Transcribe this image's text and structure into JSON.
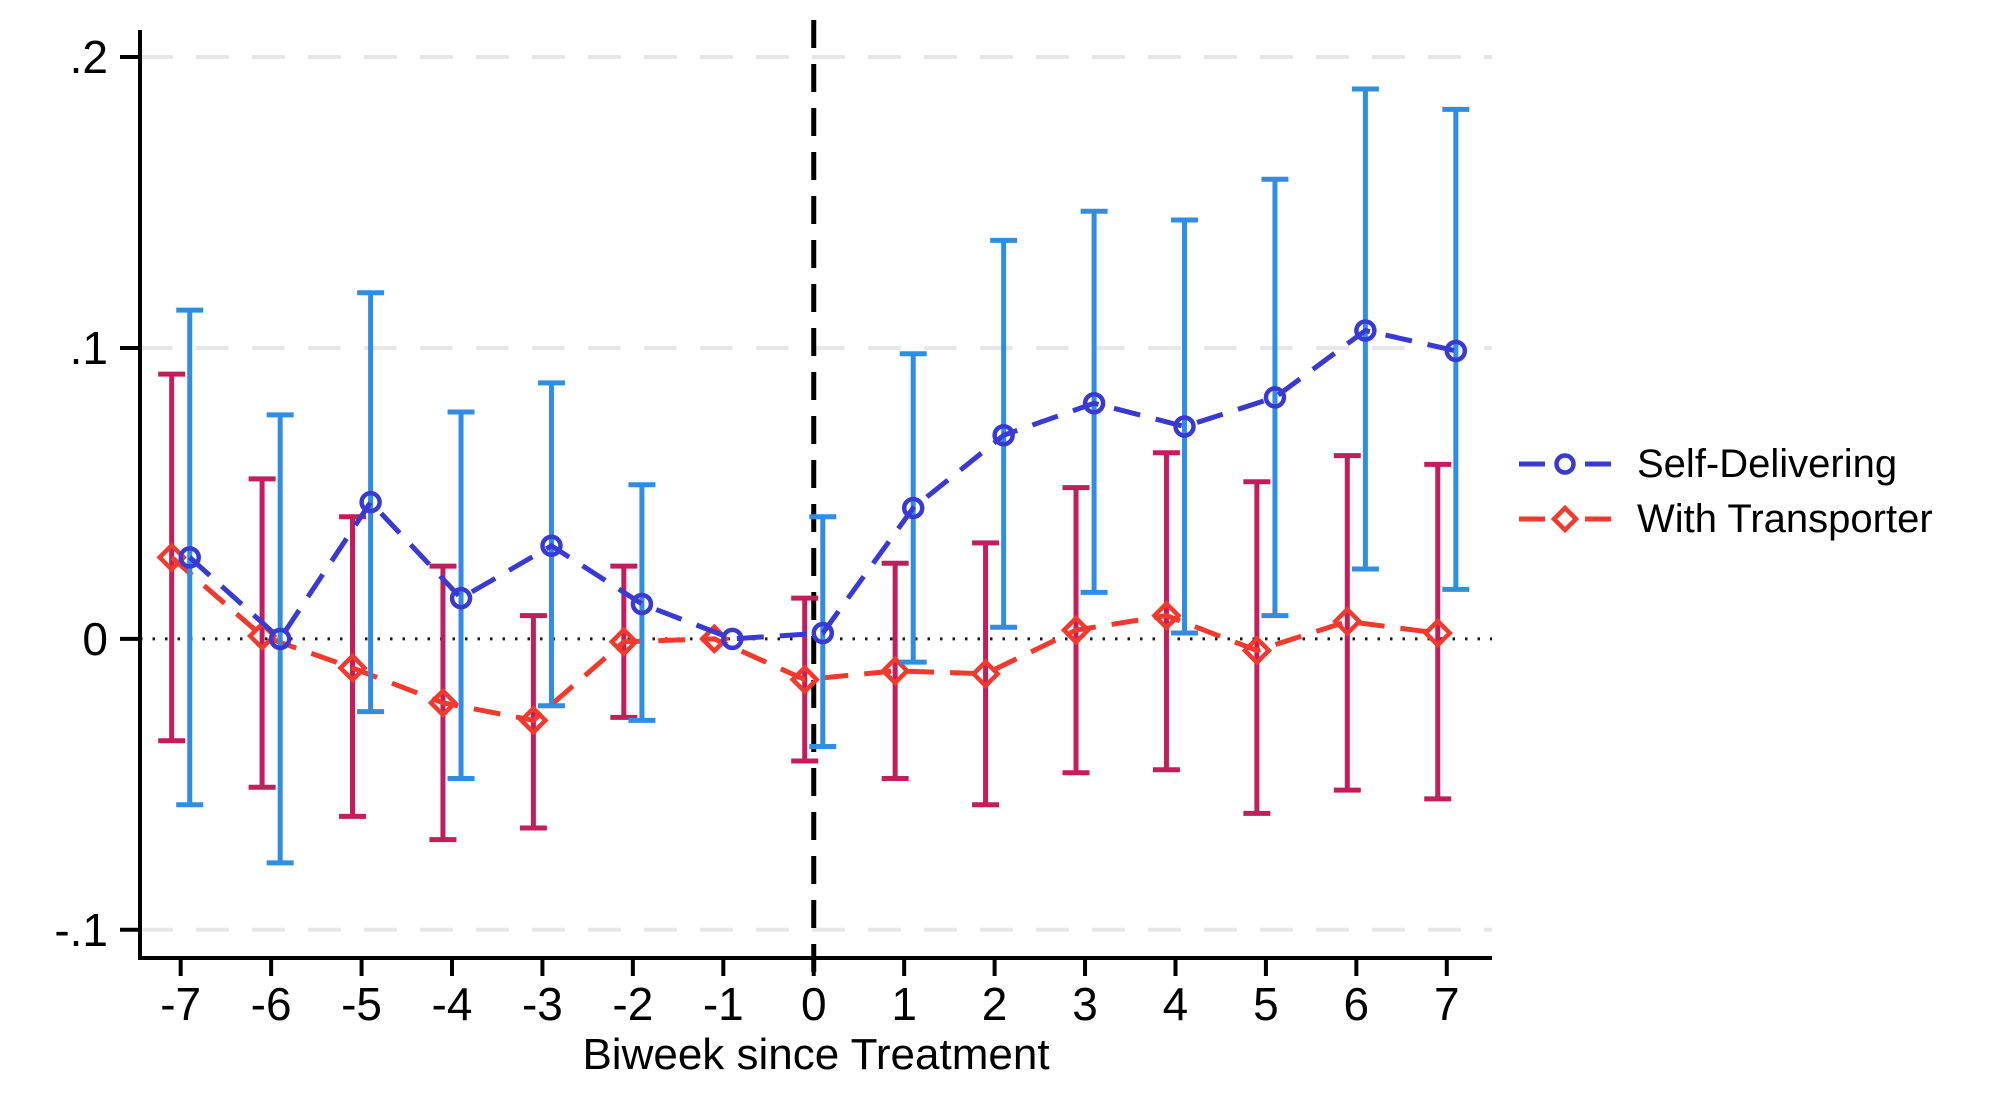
{
  "chart_data": {
    "type": "line",
    "subtype": "event-study-coefficient-plot",
    "title": "",
    "xlabel": "Biweek since Treatment",
    "ylabel": "",
    "x": [
      -7,
      -6,
      -5,
      -4,
      -3,
      -2,
      -1,
      0,
      1,
      2,
      3,
      4,
      5,
      6,
      7
    ],
    "x_tick_labels": [
      "-7",
      "-6",
      "-5",
      "-4",
      "-3",
      "-2",
      "-1",
      "0",
      "1",
      "2",
      "3",
      "4",
      "5",
      "6",
      "7"
    ],
    "y_ticks": [
      {
        "label": ".2",
        "value": 0.2
      },
      {
        "label": ".1",
        "value": 0.1
      },
      {
        "label": "0",
        "value": 0.0
      },
      {
        "label": "-.1",
        "value": -0.1
      }
    ],
    "xlim": [
      -7.45,
      7.5
    ],
    "ylim": [
      -0.1097,
      0.2093
    ],
    "gridline_values": [
      0.2,
      0.1,
      -0.1
    ],
    "zero_line_value": 0,
    "treatment_line_x": 0,
    "grid_on": true,
    "legend_position": "right-middle",
    "series": [
      {
        "name": "Self-Delivering",
        "marker": "circle",
        "x_offset": 0.1,
        "line_color": "#3939d4",
        "ci_color": "#2f8de4",
        "estimates": [
          0.028,
          0.0,
          0.047,
          0.014,
          0.032,
          0.012,
          0.0,
          0.002,
          0.045,
          0.07,
          0.081,
          0.073,
          0.083,
          0.106,
          0.099
        ],
        "ci_low": [
          -0.057,
          -0.077,
          -0.025,
          -0.048,
          -0.023,
          -0.028,
          null,
          -0.037,
          -0.008,
          0.004,
          0.016,
          0.002,
          0.008,
          0.024,
          0.017
        ],
        "ci_high": [
          0.113,
          0.077,
          0.119,
          0.078,
          0.088,
          0.053,
          null,
          0.042,
          0.098,
          0.137,
          0.147,
          0.144,
          0.158,
          0.189,
          0.182
        ]
      },
      {
        "name": "With Transporter",
        "marker": "diamond",
        "x_offset": -0.1,
        "line_color": "#f2392c",
        "ci_color": "#c41d5c",
        "estimates": [
          0.028,
          0.001,
          -0.01,
          -0.022,
          -0.028,
          -0.001,
          0.0,
          -0.014,
          -0.011,
          -0.012,
          0.003,
          0.008,
          -0.004,
          0.006,
          0.002
        ],
        "ci_low": [
          -0.035,
          -0.051,
          -0.061,
          -0.069,
          -0.065,
          -0.027,
          null,
          -0.042,
          -0.048,
          -0.057,
          -0.046,
          -0.045,
          -0.06,
          -0.052,
          -0.055
        ],
        "ci_high": [
          0.091,
          0.055,
          0.042,
          0.025,
          0.008,
          0.025,
          null,
          0.014,
          0.026,
          0.033,
          0.052,
          0.064,
          0.054,
          0.063,
          0.06
        ]
      }
    ]
  },
  "colors": {
    "background": "#ffffff",
    "axis": "#000000",
    "grid": "#e7e7e7",
    "zero_line": "#1a1a1a",
    "treatment_line": "#000000",
    "text": "#000000"
  }
}
